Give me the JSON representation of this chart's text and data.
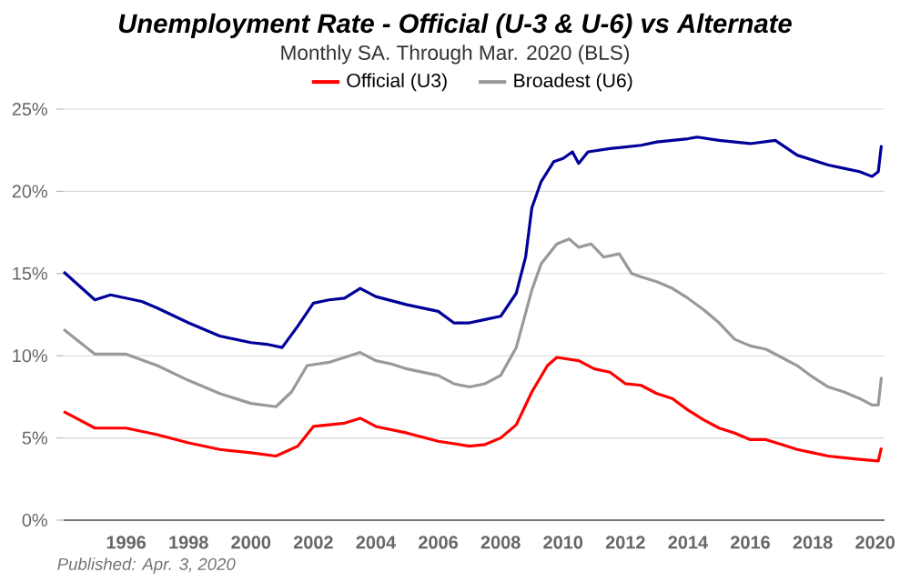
{
  "chart_data": {
    "type": "line",
    "title": "Unemployment Rate - Official (U-3 & U-6) vs Alternate",
    "subtitle": "Monthly SA. Through Mar. 2020  (BLS)",
    "legend": "top",
    "grid": "y",
    "marker": "none",
    "line_style": "solid",
    "xlim": [
      1994,
      2020.3
    ],
    "xticks": [
      1996,
      1998,
      2000,
      2002,
      2004,
      2006,
      2008,
      2010,
      2012,
      2014,
      2016,
      2018,
      2020
    ],
    "ylim": [
      0,
      25
    ],
    "yticks": [
      {
        "value": 0,
        "label": "0%"
      },
      {
        "value": 5,
        "label": "5%"
      },
      {
        "value": 10,
        "label": "10%"
      },
      {
        "value": 15,
        "label": "15%"
      },
      {
        "value": 20,
        "label": "20%"
      },
      {
        "value": 25,
        "label": "25%"
      }
    ],
    "annotations": [
      "Published: Apr. 3, 2020"
    ],
    "series": [
      {
        "name": "Official (U3)",
        "color": "#ff0000",
        "x": [
          1994,
          1994.5,
          1995,
          1996,
          1997,
          1998,
          1999,
          2000,
          2000.8,
          2001.5,
          2002,
          2003,
          2003.5,
          2004,
          2005,
          2006,
          2007,
          2007.5,
          2008,
          2008.5,
          2009,
          2009.5,
          2009.8,
          2010.5,
          2011,
          2011.5,
          2012,
          2012.5,
          2013,
          2013.5,
          2014,
          2014.5,
          2015,
          2015.5,
          2016,
          2016.5,
          2017,
          2017.5,
          2018,
          2018.5,
          2019,
          2019.5,
          2020.1,
          2020.2
        ],
        "values": [
          6.6,
          6.1,
          5.6,
          5.6,
          5.2,
          4.7,
          4.3,
          4.1,
          3.9,
          4.5,
          5.7,
          5.9,
          6.2,
          5.7,
          5.3,
          4.8,
          4.5,
          4.6,
          5.0,
          5.8,
          7.8,
          9.4,
          9.9,
          9.7,
          9.2,
          9.0,
          8.3,
          8.2,
          7.7,
          7.4,
          6.7,
          6.1,
          5.6,
          5.3,
          4.9,
          4.9,
          4.6,
          4.3,
          4.1,
          3.9,
          3.8,
          3.7,
          3.6,
          4.4
        ]
      },
      {
        "name": "Broadest (U6)",
        "color": "#999999",
        "x": [
          1994,
          1995,
          1996,
          1997,
          1998,
          1999,
          2000,
          2000.8,
          2001.3,
          2001.8,
          2002.5,
          2003,
          2003.5,
          2004,
          2004.5,
          2005,
          2006,
          2006.5,
          2007,
          2007.5,
          2008,
          2008.5,
          2009,
          2009.3,
          2009.8,
          2010.2,
          2010.5,
          2010.9,
          2011.3,
          2011.8,
          2012.2,
          2012.5,
          2013,
          2013.5,
          2014,
          2014.5,
          2015,
          2015.5,
          2016,
          2016.5,
          2017,
          2017.5,
          2018,
          2018.5,
          2019,
          2019.5,
          2019.9,
          2020.1,
          2020.2
        ],
        "values": [
          11.6,
          10.1,
          10.1,
          9.4,
          8.5,
          7.7,
          7.1,
          6.9,
          7.8,
          9.4,
          9.6,
          9.9,
          10.2,
          9.7,
          9.5,
          9.2,
          8.8,
          8.3,
          8.1,
          8.3,
          8.8,
          10.5,
          14.0,
          15.6,
          16.8,
          17.1,
          16.6,
          16.8,
          16.0,
          16.2,
          15.0,
          14.8,
          14.5,
          14.1,
          13.5,
          12.8,
          12.0,
          11.0,
          10.6,
          10.4,
          9.9,
          9.4,
          8.7,
          8.1,
          7.8,
          7.4,
          7.0,
          7.0,
          8.7
        ]
      },
      {
        "color": "#000099",
        "x": [
          1994,
          1995,
          1995.5,
          1996.5,
          1997,
          1998,
          1999,
          2000,
          2000.5,
          2001,
          2001.5,
          2002,
          2002.5,
          2003,
          2003.5,
          2004,
          2005,
          2006,
          2006.5,
          2007,
          2007.5,
          2008,
          2008.5,
          2008.8,
          2009,
          2009.3,
          2009.7,
          2010,
          2010.3,
          2010.5,
          2010.8,
          2011.5,
          2012,
          2012.5,
          2013,
          2014,
          2014.3,
          2015,
          2016,
          2016.8,
          2017.5,
          2018,
          2018.5,
          2019,
          2019.5,
          2019.9,
          2020.1,
          2020.2
        ],
        "values": [
          15.1,
          13.4,
          13.7,
          13.3,
          12.9,
          12.0,
          11.2,
          10.8,
          10.7,
          10.5,
          11.8,
          13.2,
          13.4,
          13.5,
          14.1,
          13.6,
          13.1,
          12.7,
          12.0,
          12.0,
          12.2,
          12.4,
          13.8,
          16.0,
          19.0,
          20.6,
          21.8,
          22.0,
          22.4,
          21.7,
          22.4,
          22.6,
          22.7,
          22.8,
          23.0,
          23.2,
          23.3,
          23.1,
          22.9,
          23.1,
          22.2,
          21.9,
          21.6,
          21.4,
          21.2,
          20.9,
          21.2,
          22.8
        ]
      }
    ]
  }
}
